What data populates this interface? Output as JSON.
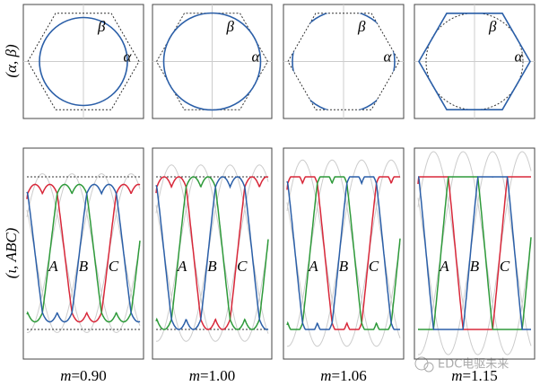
{
  "row_labels": {
    "top": "(α, β)",
    "bottom": "(ι, ABC)"
  },
  "panels": [
    {
      "alpha": "α",
      "beta": "β",
      "phases": [
        "A",
        "B",
        "C"
      ],
      "caption": [
        "m",
        "=0.90"
      ]
    },
    {
      "alpha": "α",
      "beta": "β",
      "phases": [
        "A",
        "B",
        "C"
      ],
      "caption": [
        "m",
        "=1.00"
      ]
    },
    {
      "alpha": "α",
      "beta": "β",
      "phases": [
        "A",
        "B",
        "C"
      ],
      "caption": [
        "m",
        "=1.06"
      ]
    },
    {
      "alpha": "α",
      "beta": "β",
      "phases": [
        "A",
        "B",
        "C"
      ],
      "caption": [
        "m",
        "=1.15"
      ]
    }
  ],
  "watermark": "EDC电驱未来"
}
